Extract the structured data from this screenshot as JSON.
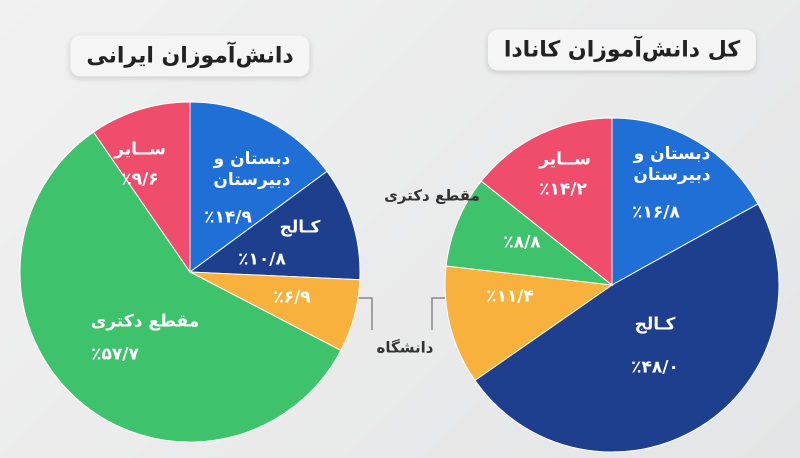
{
  "chart_data": [
    {
      "type": "pie",
      "title": "دانش‌آموزان ایرانی",
      "categories": [
        "دبستان و دبیرستان",
        "کـالج",
        "دانشگاه",
        "مقطع دکتری",
        "ســایر"
      ],
      "values": [
        14.9,
        10.8,
        6.9,
        57.7,
        9.6
      ],
      "value_labels": [
        "٪۱۴/۹",
        "٪۱۰/۸",
        "٪۶/۹",
        "٪۵۷/۷",
        "٪۹/۶"
      ],
      "colors": [
        "#1f6fd6",
        "#1d3f8e",
        "#f8b13c",
        "#3ec26c",
        "#ef4d6b"
      ]
    },
    {
      "type": "pie",
      "title": "کل دانش‌آموزان کانادا",
      "categories": [
        "دبستان و دبیرستان",
        "کـالج",
        null,
        "مقطع دکتری",
        "ســایر"
      ],
      "values": [
        16.8,
        48.0,
        11.4,
        8.8,
        14.2
      ],
      "value_labels": [
        "٪۱۶/۸",
        "٪۴۸/۰",
        "٪۱۱/۴",
        "٪۸/۸",
        "٪۱۴/۲"
      ],
      "colors": [
        "#1f6fd6",
        "#1d3f8e",
        "#f8b13c",
        "#3ec26c",
        "#ef4d6b"
      ]
    }
  ]
}
